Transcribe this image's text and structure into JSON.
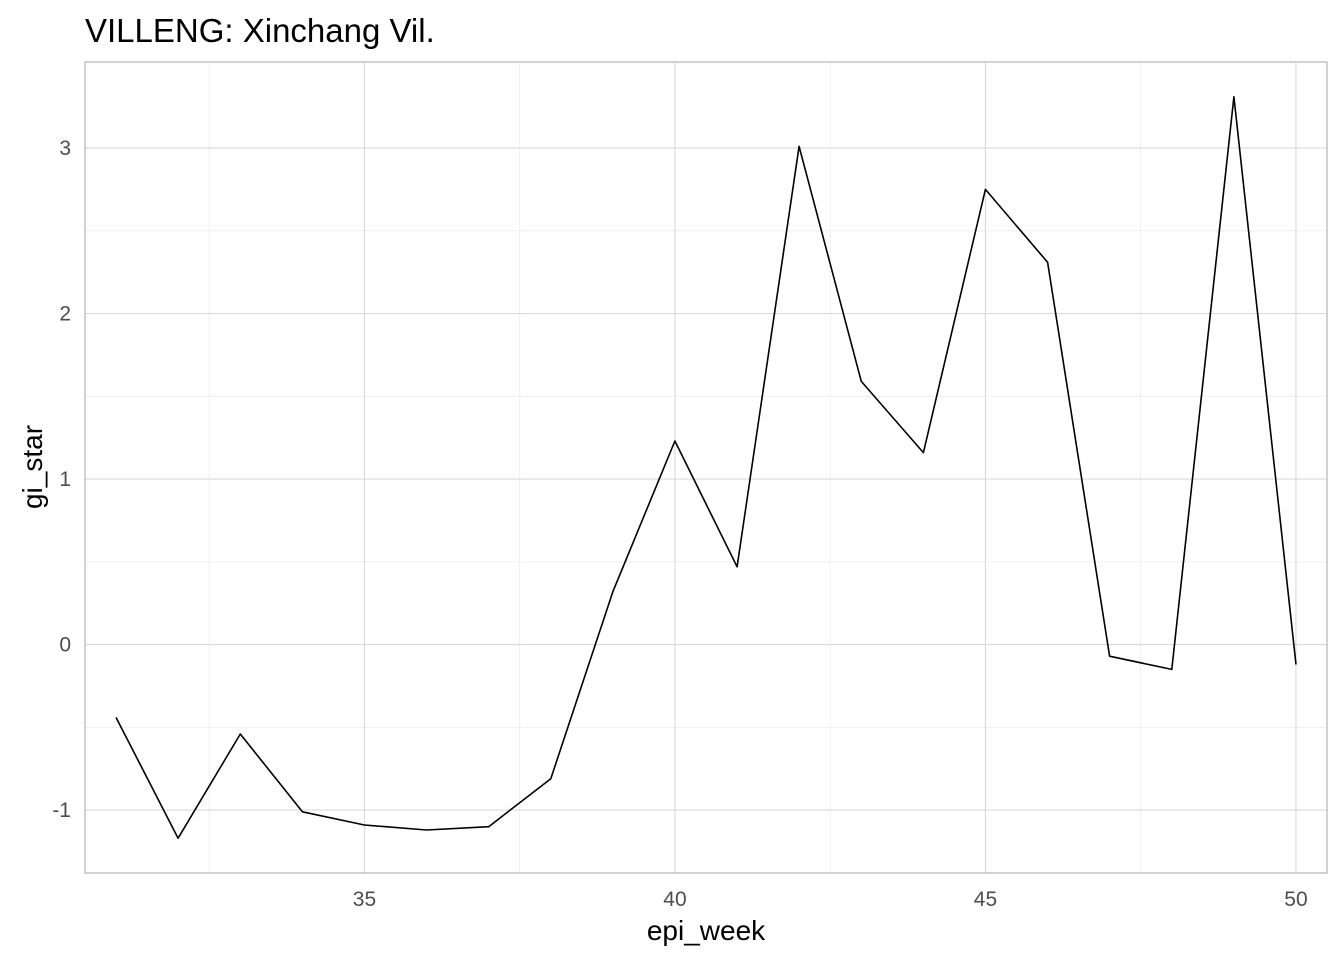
{
  "chart_data": {
    "type": "line",
    "title": "VILLENG: Xinchang Vil.",
    "xlabel": "epi_week",
    "ylabel": "gi_star",
    "xlim": [
      30.5,
      50.5
    ],
    "ylim": [
      -1.38,
      3.52
    ],
    "x_ticks": [
      35,
      40,
      45,
      50
    ],
    "x_minor": [
      32.5,
      37.5,
      42.5,
      47.5
    ],
    "y_ticks": [
      -1,
      0,
      1,
      2,
      3
    ],
    "y_minor": [
      -0.5,
      0.5,
      1.5,
      2.5
    ],
    "grid": true,
    "legend": "none",
    "line_color": "#000000",
    "series": [
      {
        "x": [
          31,
          32,
          33,
          34,
          35,
          36,
          37,
          38,
          39,
          40,
          41,
          42,
          43,
          44,
          45,
          46,
          47,
          48,
          49,
          50
        ],
        "values": [
          -0.44,
          -1.17,
          -0.54,
          -1.01,
          -1.09,
          -1.12,
          -1.1,
          -0.81,
          0.32,
          1.23,
          0.47,
          3.01,
          1.59,
          1.16,
          2.75,
          2.31,
          -0.07,
          -0.15,
          3.31,
          -0.12
        ]
      }
    ]
  }
}
